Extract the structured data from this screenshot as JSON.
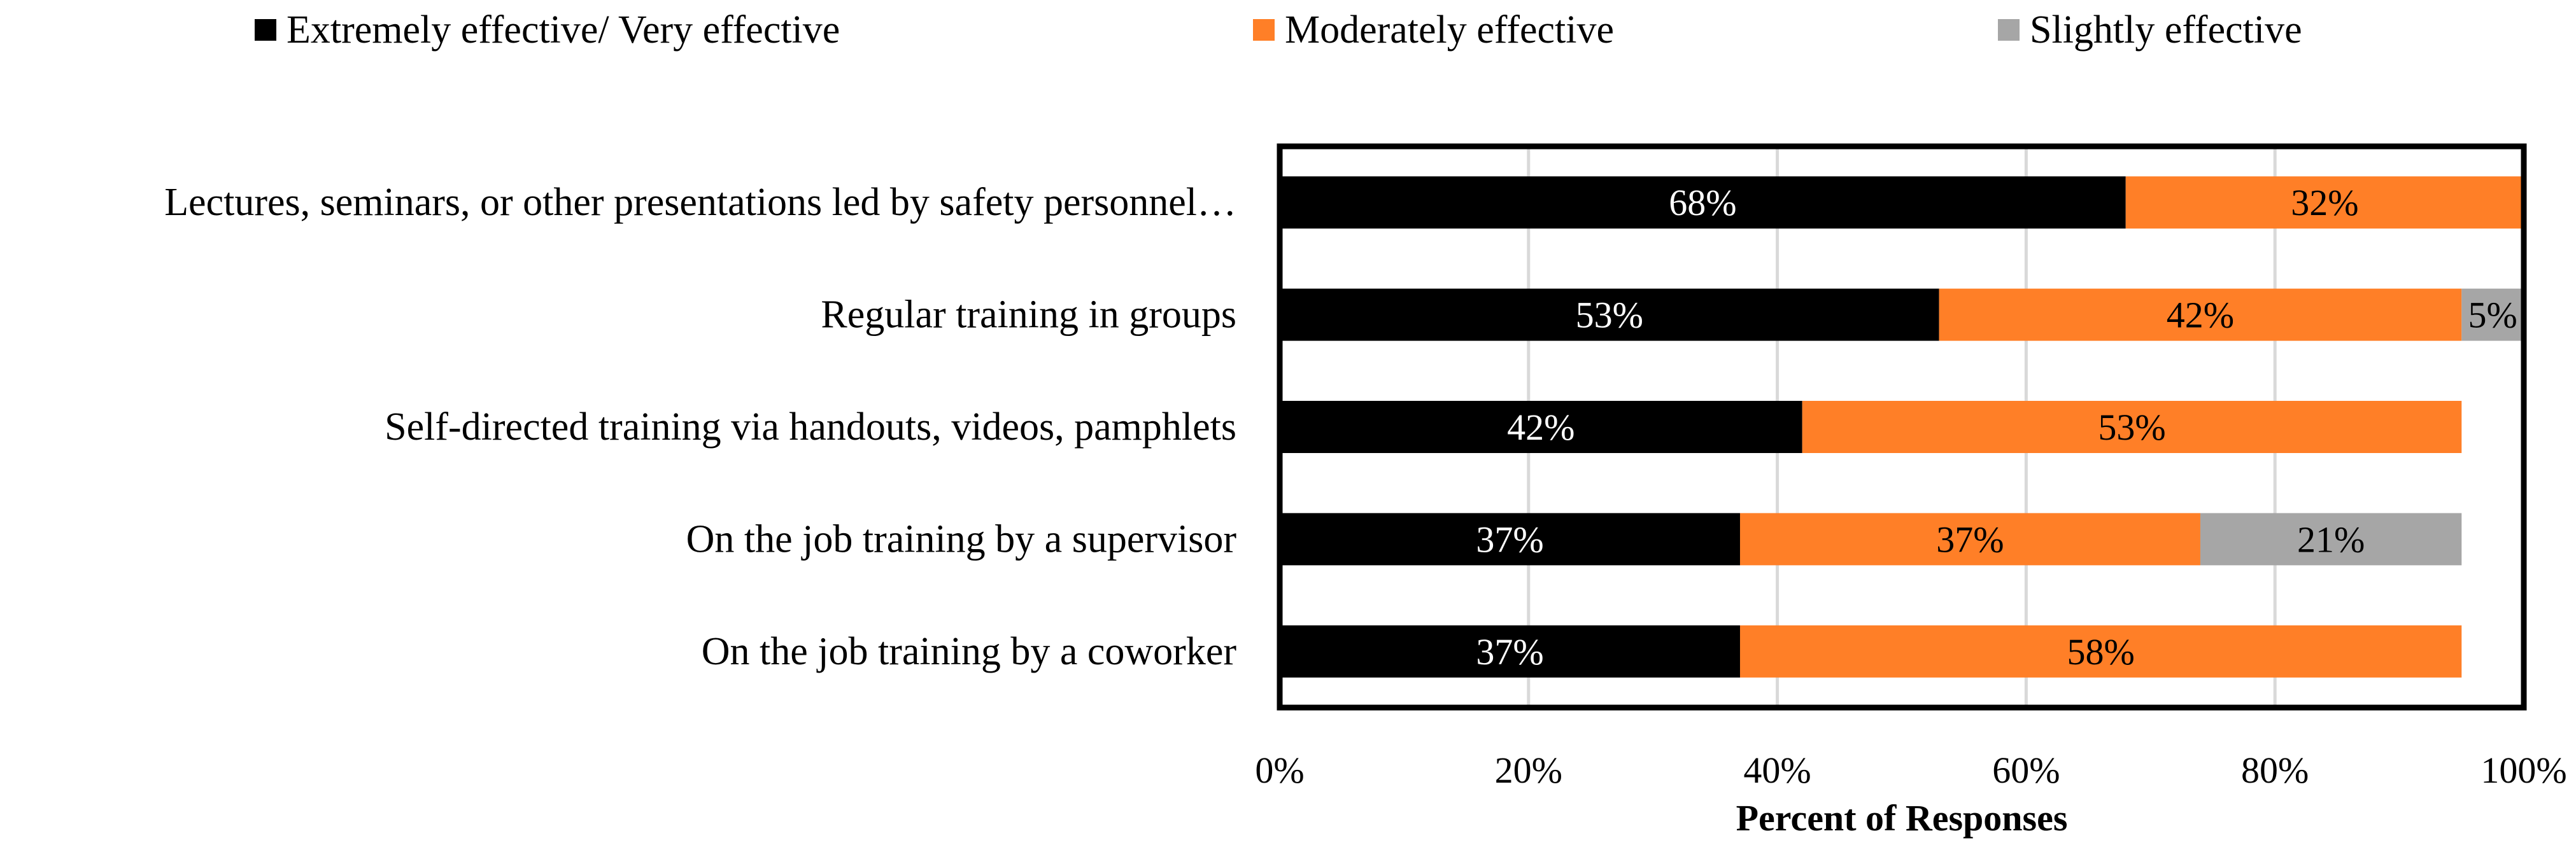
{
  "chart_data": {
    "type": "bar",
    "orientation": "horizontal",
    "stacked": true,
    "title": "",
    "xlabel": "Percent of Responses",
    "ylabel": "",
    "xlim": [
      0,
      100
    ],
    "x_ticks": [
      0,
      20,
      40,
      60,
      80,
      100
    ],
    "x_tick_labels": [
      "0%",
      "20%",
      "40%",
      "60%",
      "80%",
      "100%"
    ],
    "grid": "vertical",
    "legend_position": "top",
    "categories": [
      "Lectures, seminars, or other presentations led by safety personnel…",
      "Regular training in groups",
      "Self-directed training via handouts, videos, pamphlets",
      "On the job training by a supervisor",
      "On the job training by a coworker"
    ],
    "series": [
      {
        "name": "Extremely effective/ Very effective",
        "color": "#000000",
        "label_color": "#ffffff",
        "values": [
          68,
          53,
          42,
          37,
          37
        ],
        "labels": [
          "68%",
          "53%",
          "42%",
          "37%",
          "37%"
        ]
      },
      {
        "name": "Moderately effective",
        "color": "#ff7f27",
        "label_color": "#000000",
        "values": [
          32,
          42,
          53,
          37,
          58
        ],
        "labels": [
          "32%",
          "42%",
          "53%",
          "37%",
          "58%"
        ]
      },
      {
        "name": "Slightly effective",
        "color": "#a6a6a6",
        "label_color": "#000000",
        "values": [
          0,
          5,
          0,
          21,
          0
        ],
        "labels": [
          "",
          "5%",
          "",
          "21%",
          ""
        ]
      }
    ]
  }
}
